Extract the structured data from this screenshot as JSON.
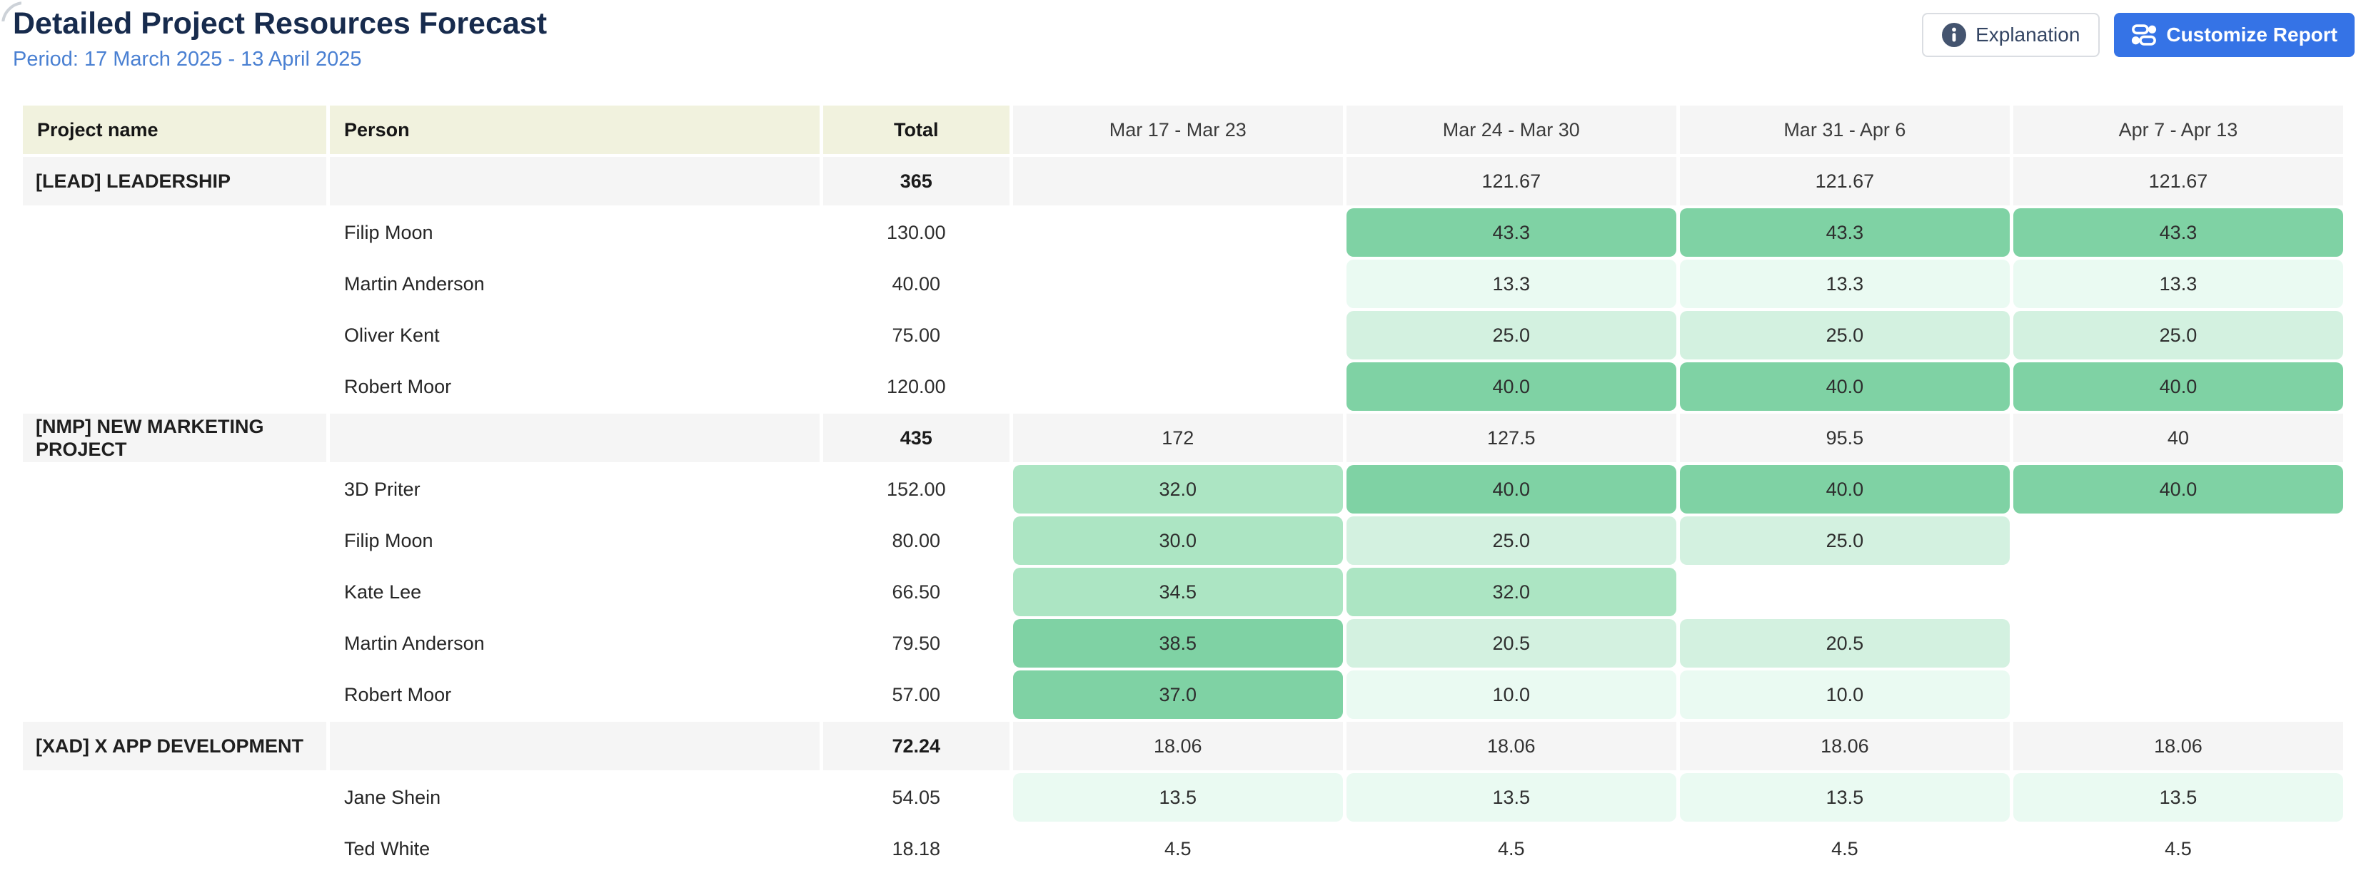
{
  "header": {
    "title": "Detailed Project Resources Forecast",
    "period": "Period: 17 March 2025 - 13 April 2025",
    "explanation_label": "Explanation",
    "customize_label": "Customize Report"
  },
  "colors": {
    "title_text": "#172b4d",
    "period_text": "#4a80d2",
    "primary_button": "#3573e6",
    "header_ivory": "#f1f2de",
    "header_gray": "#f5f5f5",
    "load_strong": "#7fd2a4",
    "load_medium": "#ace5c3",
    "load_light": "#d3f1e0",
    "load_pale": "#eafaf2"
  },
  "icons": {
    "explanation": "info-icon",
    "customize": "sliders-icon"
  },
  "table": {
    "columns": [
      "Project name",
      "Person",
      "Total",
      "Mar 17 - Mar 23",
      "Mar 24 - Mar 30",
      "Mar 31 - Apr 6",
      "Apr 7 - Apr 13"
    ],
    "rows": [
      {
        "type": "group",
        "project": "[LEAD] LEADERSHIP",
        "person": "",
        "total": "365",
        "weeks": [
          {
            "v": "",
            "tone": "group"
          },
          {
            "v": "121.67",
            "tone": "group"
          },
          {
            "v": "121.67",
            "tone": "group"
          },
          {
            "v": "121.67",
            "tone": "group"
          }
        ]
      },
      {
        "type": "person",
        "project": "",
        "person": "Filip Moon",
        "total": "130.00",
        "weeks": [
          {
            "v": "",
            "tone": "none"
          },
          {
            "v": "43.3",
            "tone": "strong"
          },
          {
            "v": "43.3",
            "tone": "strong"
          },
          {
            "v": "43.3",
            "tone": "strong"
          }
        ]
      },
      {
        "type": "person",
        "project": "",
        "person": "Martin Anderson",
        "total": "40.00",
        "weeks": [
          {
            "v": "",
            "tone": "none"
          },
          {
            "v": "13.3",
            "tone": "pale"
          },
          {
            "v": "13.3",
            "tone": "pale"
          },
          {
            "v": "13.3",
            "tone": "pale"
          }
        ]
      },
      {
        "type": "person",
        "project": "",
        "person": "Oliver Kent",
        "total": "75.00",
        "weeks": [
          {
            "v": "",
            "tone": "none"
          },
          {
            "v": "25.0",
            "tone": "light"
          },
          {
            "v": "25.0",
            "tone": "light"
          },
          {
            "v": "25.0",
            "tone": "light"
          }
        ]
      },
      {
        "type": "person",
        "project": "",
        "person": "Robert Moor",
        "total": "120.00",
        "weeks": [
          {
            "v": "",
            "tone": "none"
          },
          {
            "v": "40.0",
            "tone": "strong"
          },
          {
            "v": "40.0",
            "tone": "strong"
          },
          {
            "v": "40.0",
            "tone": "strong"
          }
        ]
      },
      {
        "type": "group",
        "project": "[NMP] NEW MARKETING PROJECT",
        "person": "",
        "total": "435",
        "weeks": [
          {
            "v": "172",
            "tone": "group"
          },
          {
            "v": "127.5",
            "tone": "group"
          },
          {
            "v": "95.5",
            "tone": "group"
          },
          {
            "v": "40",
            "tone": "group"
          }
        ]
      },
      {
        "type": "person",
        "project": "",
        "person": "3D Priter",
        "total": "152.00",
        "weeks": [
          {
            "v": "32.0",
            "tone": "medium"
          },
          {
            "v": "40.0",
            "tone": "strong"
          },
          {
            "v": "40.0",
            "tone": "strong"
          },
          {
            "v": "40.0",
            "tone": "strong"
          }
        ]
      },
      {
        "type": "person",
        "project": "",
        "person": "Filip Moon",
        "total": "80.00",
        "weeks": [
          {
            "v": "30.0",
            "tone": "medium"
          },
          {
            "v": "25.0",
            "tone": "light"
          },
          {
            "v": "25.0",
            "tone": "light"
          },
          {
            "v": "",
            "tone": "none"
          }
        ]
      },
      {
        "type": "person",
        "project": "",
        "person": "Kate Lee",
        "total": "66.50",
        "weeks": [
          {
            "v": "34.5",
            "tone": "medium"
          },
          {
            "v": "32.0",
            "tone": "medium"
          },
          {
            "v": "",
            "tone": "none"
          },
          {
            "v": "",
            "tone": "none"
          }
        ]
      },
      {
        "type": "person",
        "project": "",
        "person": "Martin Anderson",
        "total": "79.50",
        "weeks": [
          {
            "v": "38.5",
            "tone": "strong"
          },
          {
            "v": "20.5",
            "tone": "light"
          },
          {
            "v": "20.5",
            "tone": "light"
          },
          {
            "v": "",
            "tone": "none"
          }
        ]
      },
      {
        "type": "person",
        "project": "",
        "person": "Robert Moor",
        "total": "57.00",
        "weeks": [
          {
            "v": "37.0",
            "tone": "strong"
          },
          {
            "v": "10.0",
            "tone": "pale"
          },
          {
            "v": "10.0",
            "tone": "pale"
          },
          {
            "v": "",
            "tone": "none"
          }
        ]
      },
      {
        "type": "group",
        "project": "[XAD] X APP DEVELOPMENT",
        "person": "",
        "total": "72.24",
        "weeks": [
          {
            "v": "18.06",
            "tone": "group"
          },
          {
            "v": "18.06",
            "tone": "group"
          },
          {
            "v": "18.06",
            "tone": "group"
          },
          {
            "v": "18.06",
            "tone": "group"
          }
        ]
      },
      {
        "type": "person",
        "project": "",
        "person": "Jane Shein",
        "total": "54.05",
        "weeks": [
          {
            "v": "13.5",
            "tone": "pale"
          },
          {
            "v": "13.5",
            "tone": "pale"
          },
          {
            "v": "13.5",
            "tone": "pale"
          },
          {
            "v": "13.5",
            "tone": "pale"
          }
        ]
      },
      {
        "type": "person",
        "project": "",
        "person": "Ted White",
        "total": "18.18",
        "weeks": [
          {
            "v": "4.5",
            "tone": "none"
          },
          {
            "v": "4.5",
            "tone": "none"
          },
          {
            "v": "4.5",
            "tone": "none"
          },
          {
            "v": "4.5",
            "tone": "none"
          }
        ]
      }
    ]
  }
}
